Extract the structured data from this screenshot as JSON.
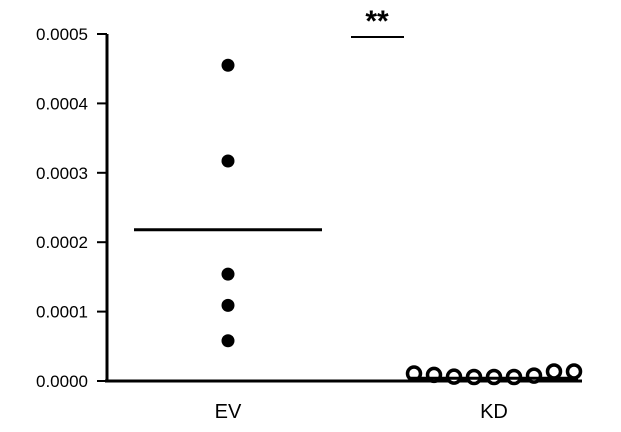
{
  "chart_data": {
    "type": "scatter",
    "categories": [
      "EV",
      "KD"
    ],
    "ylim": [
      0,
      0.0005
    ],
    "yticks": [
      "0.0000",
      "0.0001",
      "0.0002",
      "0.0003",
      "0.0004",
      "0.0005"
    ],
    "series": [
      {
        "category": "EV",
        "marker": "filled",
        "values": [
          0.000455,
          0.000317,
          0.000154,
          0.000109,
          5.8e-05
        ],
        "mean": 0.000218
      },
      {
        "category": "KD",
        "marker": "open",
        "values": [
          5e-06,
          3e-06,
          5e-07,
          0.0,
          0.0,
          0.0,
          2e-06,
          8e-06,
          8e-06
        ],
        "mean": 4e-06
      }
    ],
    "significance": "**",
    "grid": false,
    "legend": "none"
  }
}
